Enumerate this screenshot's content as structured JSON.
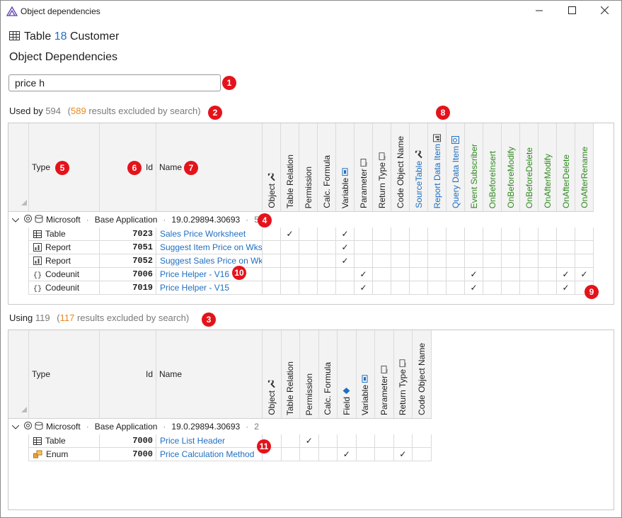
{
  "window": {
    "title": "Object dependencies"
  },
  "header": {
    "prefix": "Table",
    "number": "18",
    "name": "Customer",
    "subtitle": "Object Dependencies"
  },
  "search": {
    "value": "price h"
  },
  "used_by": {
    "label": "Used by",
    "count": "594",
    "paren_open": "(",
    "excluded": "589",
    "excluded_text": "results excluded by search)"
  },
  "using": {
    "label": "Using",
    "count": "119",
    "paren_open": "(",
    "excluded": "117",
    "excluded_text": "results excluded by search)"
  },
  "col": {
    "type": "Type",
    "id": "Id",
    "name": "Name"
  },
  "used_by_cols": [
    "Object",
    "Table Relation",
    "Permission",
    "Calc. Formula",
    "Variable",
    "Parameter",
    "Return Type",
    "Code Object Name",
    "SourceTable",
    "Report Data Item",
    "Query Data Item",
    "Event Subscriber",
    "OnBeforeInsert",
    "OnBeforeModify",
    "OnBeforeDelete",
    "OnAfterModify",
    "OnAfterDelete",
    "OnAfterRename"
  ],
  "using_cols": [
    "Object",
    "Table Relation",
    "Permission",
    "Calc. Formula",
    "Field",
    "Variable",
    "Parameter",
    "Return Type",
    "Code Object Name"
  ],
  "used_by_group": {
    "publisher": "Microsoft",
    "app": "Base Application",
    "dot": "·",
    "version": "19.0.29894.30693",
    "count": "5"
  },
  "using_group": {
    "publisher": "Microsoft",
    "app": "Base Application",
    "dot": "·",
    "version": "19.0.29894.30693",
    "count": "2"
  },
  "used_by_rows": [
    {
      "type": "Table",
      "id": "7023",
      "name": "Sales Price Worksheet"
    },
    {
      "type": "Report",
      "id": "7051",
      "name": "Suggest Item Price on Wksh."
    },
    {
      "type": "Report",
      "id": "7052",
      "name": "Suggest Sales Price on Wksh."
    },
    {
      "type": "Codeunit",
      "id": "7006",
      "name": "Price Helper - V16"
    },
    {
      "type": "Codeunit",
      "id": "7019",
      "name": "Price Helper - V15"
    }
  ],
  "using_rows": [
    {
      "type": "Table",
      "id": "7000",
      "name": "Price List Header"
    },
    {
      "type": "Enum",
      "id": "7000",
      "name": "Price Calculation Method"
    }
  ],
  "check": "✓",
  "badges": [
    "1",
    "2",
    "3",
    "4",
    "5",
    "6",
    "7",
    "8",
    "9",
    "10",
    "11"
  ],
  "colors": {
    "link": "#1f6fc1",
    "accent_green": "#2e8a1e",
    "excluded": "#e8891c",
    "badge": "#e4131b"
  }
}
